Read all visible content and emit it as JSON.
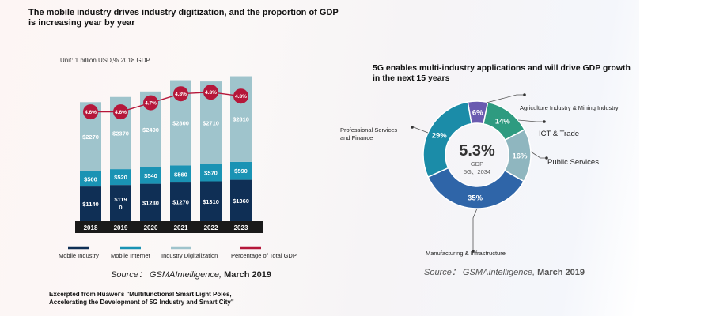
{
  "header": {
    "title": "The mobile industry drives industry digitization, and the proportion of GDP is increasing year by year"
  },
  "left_chart": {
    "unit": "Unit: 1 billion USD,% 2018 GDP",
    "source_label": "Source：",
    "source_org": "GSMAIntelligence,",
    "source_date": "March 2019"
  },
  "right_chart": {
    "title": "5G enables multi-industry applications and will drive GDP growth in the next 15 years",
    "center_value": "5.3%",
    "center_sub1": "GDP",
    "center_sub2": "5G、2034",
    "source_label": "Source：",
    "source_org": "GSMAIntelligence,",
    "source_date": "March 2019"
  },
  "footer": {
    "excerpt_line1": "Excerpted from Huawei's \"Multifunctional Smart Light Poles,",
    "excerpt_line2": "Accelerating the Development of 5G Industry and Smart City\""
  },
  "colors": {
    "mobile_industry": "#0f2f55",
    "mobile_internet": "#1a93b4",
    "industry_digitization": "#9fc4cc",
    "percentage": "#b5173a",
    "donut": [
      "#6a5bb0",
      "#2e9b80",
      "#8fb6bf",
      "#2f65a8",
      "#1b8ca8"
    ]
  },
  "chart_data": [
    {
      "type": "bar",
      "stacked": true,
      "categories": [
        "2018",
        "2019",
        "2020",
        "2021",
        "2022",
        "2023"
      ],
      "series": [
        {
          "name": "Mobile Industry",
          "values": [
            1140,
            1190,
            1230,
            1270,
            1310,
            1360
          ],
          "labels": [
            "$1140",
            "$119\n0",
            "$1230",
            "$1270",
            "$1310",
            "$1360"
          ]
        },
        {
          "name": "Mobile Internet",
          "values": [
            500,
            520,
            540,
            560,
            570,
            590
          ],
          "labels": [
            "$500",
            "$520",
            "$540",
            "$560",
            "$570",
            "$590"
          ]
        },
        {
          "name": "Industry Digitalization",
          "values": [
            2270,
            2370,
            2490,
            2800,
            2710,
            2810
          ],
          "labels": [
            "$2270",
            "$2370",
            "$2490",
            "$2800",
            "$2710",
            "$2810"
          ]
        }
      ],
      "line_series": {
        "name": "Percentage of Total GDP",
        "values": [
          4.6,
          4.6,
          4.7,
          4.8,
          4.8,
          4.8
        ],
        "labels": [
          "4.6%",
          "4.6%",
          "4.7%",
          "4.8%",
          "4.8%",
          "4.8%"
        ]
      },
      "ylim": [
        0,
        4800
      ]
    },
    {
      "type": "pie",
      "donut": true,
      "slices": [
        {
          "label": "Agriculture Industry & Mining Industry",
          "value": 6,
          "text": "6%"
        },
        {
          "label": "ICT & Trade",
          "value": 14,
          "text": "14%"
        },
        {
          "label": "Public Services",
          "value": 16,
          "text": "16%"
        },
        {
          "label": "Manufacturing & Infrastructure",
          "value": 35,
          "text": "35%"
        },
        {
          "label": "Professional Services and Finance",
          "value": 29,
          "text": "29%"
        }
      ]
    }
  ]
}
